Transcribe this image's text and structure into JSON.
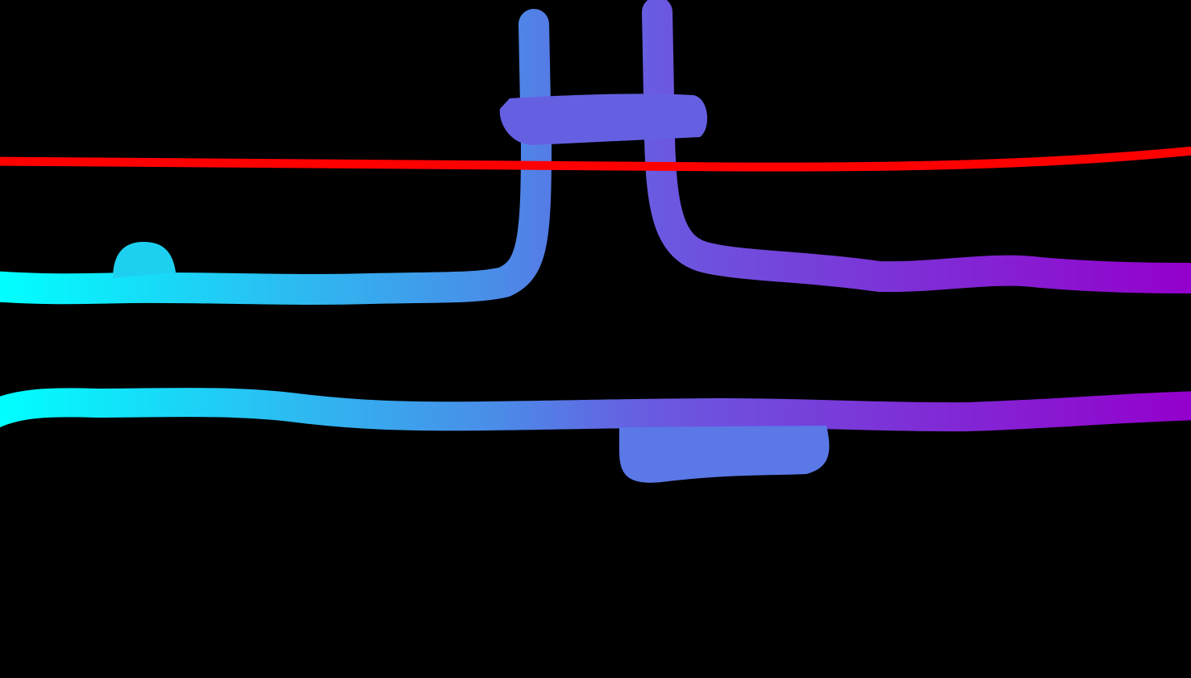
{
  "scene": {
    "background_color": "#000000",
    "gradient_start_color": "#00ffff",
    "gradient_mid_color": "#4b8be8",
    "gradient_h_color": "#6a5ae0",
    "gradient_end_color": "#9400cc",
    "red_line_color": "#ff0000"
  }
}
